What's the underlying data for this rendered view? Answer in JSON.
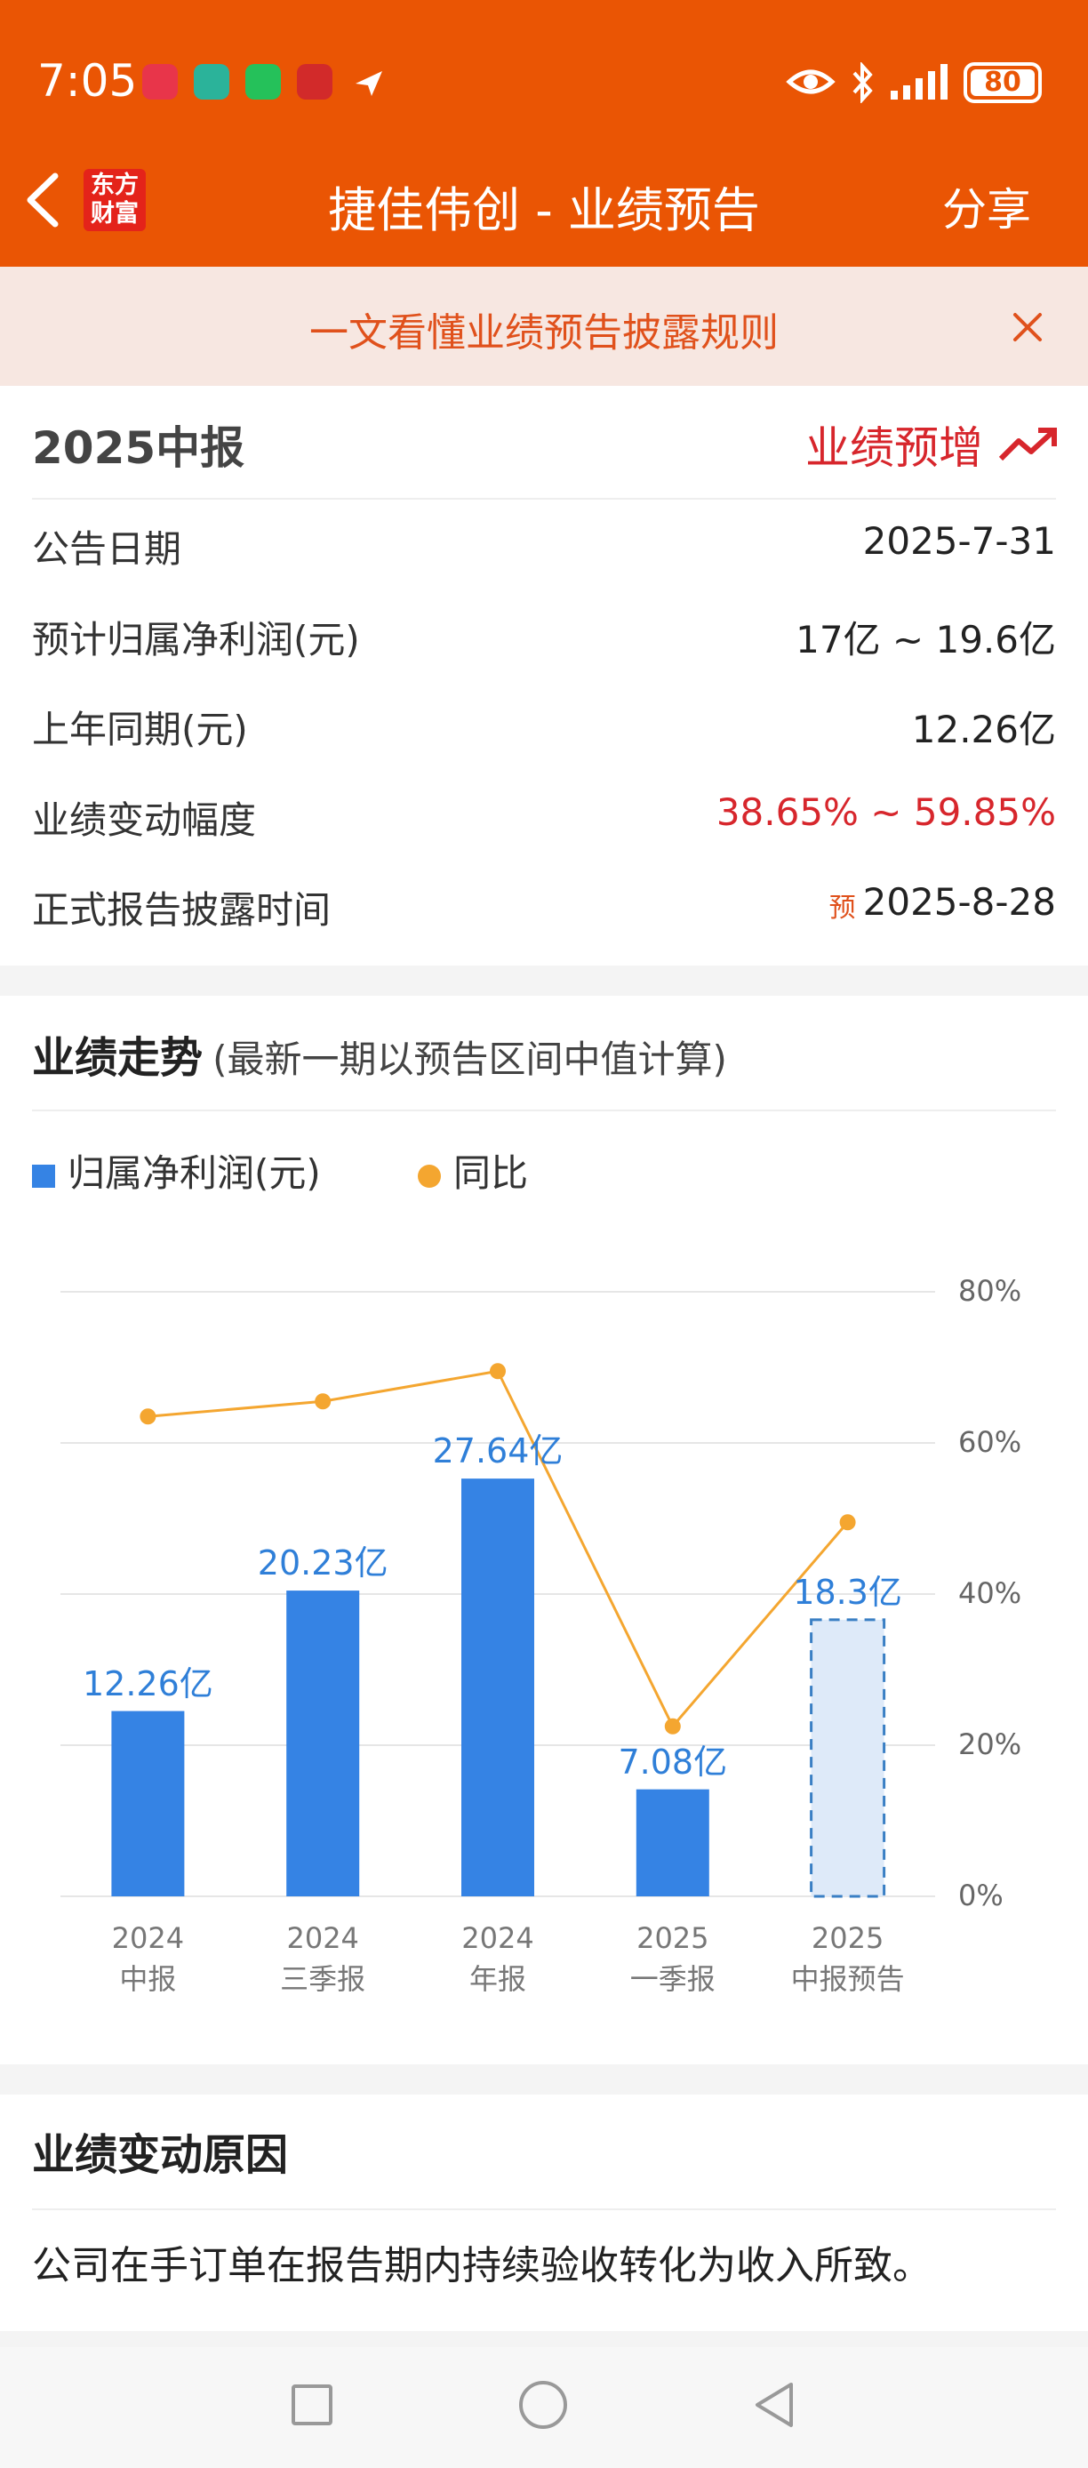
{
  "status_bar": {
    "time": "7:05",
    "battery": "80",
    "app_icons": [
      "huawei-store-icon",
      "shield-icon",
      "wechat-icon",
      "stock-app-icon",
      "paper-plane-icon"
    ]
  },
  "nav": {
    "logo_line1": "东方",
    "logo_line2": "财富",
    "title": "捷佳伟创 - 业绩预告",
    "share": "分享"
  },
  "banner": {
    "text": "一文看懂业绩预告披露规则"
  },
  "forecast": {
    "period": "2025中报",
    "type": "业绩预增",
    "rows": [
      {
        "label": "公告日期",
        "value": "2025-7-31",
        "color": "#222222"
      },
      {
        "label": "预计归属净利润(元)",
        "value": "17亿 ~ 19.6亿",
        "color": "#222222"
      },
      {
        "label": "上年同期(元)",
        "value": "12.26亿",
        "color": "#222222"
      },
      {
        "label": "业绩变动幅度",
        "value": "38.65% ~ 59.85%",
        "color": "#d7262c"
      }
    ],
    "disclosure_label": "正式报告披露时间",
    "disclosure_badge": "预",
    "disclosure_value": "2025-8-28"
  },
  "trend": {
    "title": "业绩走势",
    "subtitle": "(最新一期以预告区间中值计算)",
    "legend_bar": "归属净利润(元)",
    "legend_line": "同比"
  },
  "chart_data": {
    "type": "bar",
    "categories": [
      "2024\n中报",
      "2024\n三季报",
      "2024\n年报",
      "2025\n一季报",
      "2025\n中报预告"
    ],
    "series": [
      {
        "name": "归属净利润(元)",
        "type": "bar",
        "values": [
          12.26,
          20.23,
          27.64,
          7.08,
          18.3
        ],
        "labels": [
          "12.26亿",
          "20.23亿",
          "27.64亿",
          "7.08亿",
          "18.3亿"
        ],
        "forecast_last": true,
        "color": "#3583e4"
      },
      {
        "name": "同比",
        "type": "line",
        "values": [
          63.5,
          65.5,
          69.5,
          22.5,
          49.5
        ],
        "color": "#f4a630"
      }
    ],
    "y_right_ticks": [
      "80%",
      "60%",
      "40%",
      "20%",
      "0%"
    ],
    "y_right_range": [
      0,
      80
    ],
    "bar_axis_max": 40,
    "grid": true
  },
  "reason": {
    "title": "业绩变动原因",
    "text": "公司在手订单在报告期内持续验收转化为收入所致。"
  }
}
